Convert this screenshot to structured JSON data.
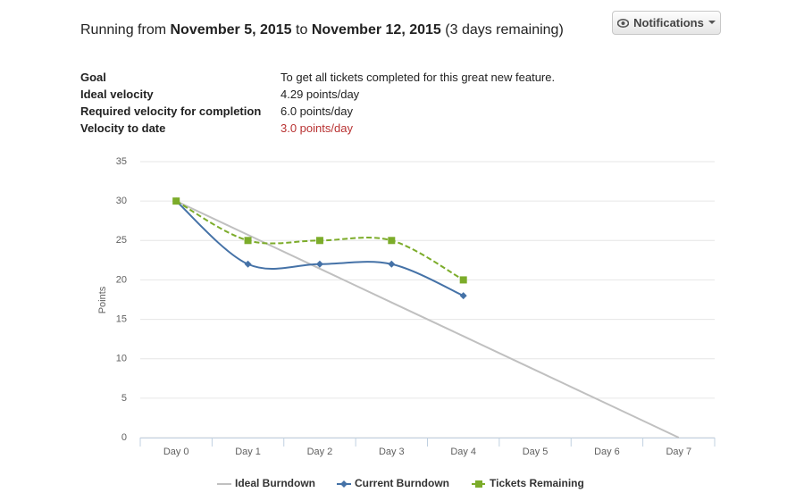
{
  "header": {
    "prefix": "Running from",
    "start": "November 5, 2015",
    "middle": "to",
    "end": "November 12, 2015",
    "remaining": "(3 days remaining)"
  },
  "button": {
    "label": "Notifications"
  },
  "info": {
    "rows": [
      [
        "Goal",
        "To get all tickets completed for this great new feature."
      ],
      [
        "Ideal velocity",
        "4.29 points/day"
      ],
      [
        "Required velocity for completion",
        "6.0 points/day"
      ],
      [
        "Velocity to date",
        "3.0 points/day"
      ]
    ]
  },
  "chart_data": {
    "type": "line",
    "ylabel": "Points",
    "categories": [
      "Day 0",
      "Day 1",
      "Day 2",
      "Day 3",
      "Day 4",
      "Day 5",
      "Day 6",
      "Day 7"
    ],
    "ylim": [
      0,
      35
    ],
    "yticks": [
      0,
      5,
      10,
      15,
      20,
      25,
      30,
      35
    ],
    "grid": true,
    "legend": "bottom",
    "series": [
      {
        "name": "Ideal Burndown",
        "color": "#c0c0c0",
        "values": [
          30,
          25.71,
          21.43,
          17.14,
          12.86,
          8.57,
          4.29,
          0
        ],
        "smooth": false,
        "dashed": false,
        "marker": "none"
      },
      {
        "name": "Current Burndown",
        "color": "#4572a7",
        "values": [
          30,
          22,
          22,
          22,
          18,
          null,
          null,
          null
        ],
        "smooth": true,
        "dashed": false,
        "marker": "diamond"
      },
      {
        "name": "Tickets Remaining",
        "color": "#7cac2a",
        "values": [
          30,
          25,
          25,
          25,
          20,
          null,
          null,
          null
        ],
        "smooth": true,
        "dashed": true,
        "marker": "square"
      }
    ]
  }
}
